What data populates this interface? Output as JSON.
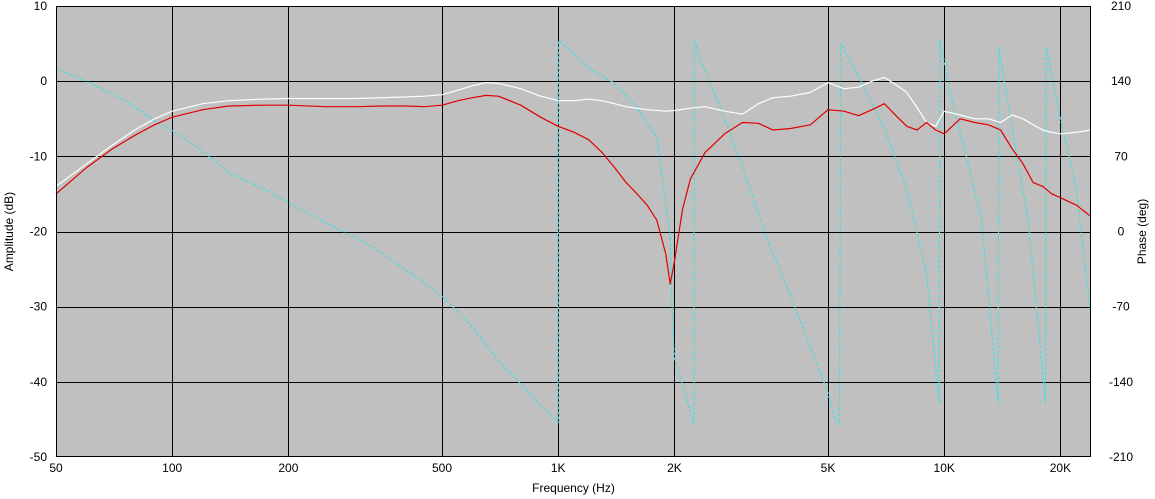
{
  "chart_data": {
    "type": "line",
    "title": "",
    "xlabel": "Frequency (Hz)",
    "ylabel": "Amplitude (dB)",
    "y2label": "Phase (deg)",
    "x_scale": "log",
    "xlim": [
      50,
      24000
    ],
    "ylim": [
      -50,
      10
    ],
    "y2lim": [
      -210,
      210
    ],
    "x_ticks": [
      50,
      100,
      200,
      500,
      1000,
      2000,
      5000,
      10000,
      20000
    ],
    "x_tick_labels": [
      "50",
      "100",
      "200",
      "500",
      "1K",
      "2K",
      "5K",
      "10K",
      "20K"
    ],
    "y_ticks": [
      10,
      0,
      -10,
      -20,
      -30,
      -40,
      -50
    ],
    "y_tick_labels": [
      "10",
      "0",
      "-10",
      "-20",
      "-30",
      "-40",
      "-50"
    ],
    "y2_ticks": [
      210,
      140,
      70,
      0,
      -70,
      -140,
      -210
    ],
    "y2_tick_labels": [
      "210",
      "140",
      "70",
      "0",
      "-70",
      "-140",
      "-210"
    ],
    "grid": true,
    "colors": {
      "plot_bg": "#c0c0c0",
      "page_bg": "#ffffff"
    },
    "series": [
      {
        "axis": "left",
        "color": "#ffffff",
        "style": "solid",
        "x": [
          50,
          60,
          70,
          80,
          90,
          100,
          120,
          140,
          170,
          200,
          250,
          300,
          350,
          400,
          450,
          500,
          550,
          600,
          650,
          700,
          800,
          900,
          1000,
          1100,
          1200,
          1300,
          1400,
          1500,
          1700,
          1900,
          2000,
          2200,
          2400,
          2700,
          3000,
          3300,
          3600,
          4000,
          4500,
          5000,
          5500,
          6000,
          6500,
          7000,
          7500,
          8000,
          8500,
          9000,
          9500,
          10000,
          11000,
          12000,
          13000,
          14000,
          15000,
          16000,
          17000,
          18000,
          19000,
          20000,
          22000,
          24000
        ],
        "y": [
          -14,
          -11,
          -8.5,
          -6.5,
          -5,
          -4,
          -3,
          -2.6,
          -2.4,
          -2.3,
          -2.3,
          -2.3,
          -2.2,
          -2.1,
          -2.0,
          -1.8,
          -1.2,
          -0.6,
          -0.2,
          -0.3,
          -1.0,
          -2.0,
          -2.6,
          -2.6,
          -2.4,
          -2.6,
          -3.0,
          -3.4,
          -3.8,
          -4.0,
          -3.9,
          -3.6,
          -3.4,
          -4.0,
          -4.4,
          -3.0,
          -2.2,
          -2.0,
          -1.5,
          -0.2,
          -1.0,
          -0.8,
          0.0,
          0.5,
          -0.5,
          -1.5,
          -3.5,
          -5.5,
          -6.0,
          -4.0,
          -4.5,
          -5.0,
          -5.0,
          -5.5,
          -4.5,
          -5.0,
          -5.8,
          -6.5,
          -6.8,
          -7.0,
          -6.8,
          -6.5
        ]
      },
      {
        "axis": "left",
        "color": "#e00000",
        "style": "solid",
        "x": [
          50,
          60,
          70,
          80,
          90,
          100,
          120,
          140,
          170,
          200,
          250,
          300,
          350,
          400,
          450,
          500,
          550,
          600,
          650,
          700,
          800,
          900,
          1000,
          1100,
          1200,
          1300,
          1400,
          1500,
          1600,
          1700,
          1800,
          1900,
          1950,
          2000,
          2100,
          2200,
          2400,
          2700,
          3000,
          3300,
          3600,
          4000,
          4500,
          5000,
          5500,
          6000,
          6500,
          7000,
          7500,
          8000,
          8500,
          9000,
          9500,
          10000,
          11000,
          12000,
          13000,
          14000,
          15000,
          16000,
          17000,
          18000,
          19000,
          20000,
          22000,
          24000
        ],
        "y": [
          -15,
          -11.5,
          -9,
          -7.2,
          -5.8,
          -4.8,
          -3.8,
          -3.3,
          -3.2,
          -3.2,
          -3.4,
          -3.4,
          -3.3,
          -3.3,
          -3.4,
          -3.2,
          -2.6,
          -2.2,
          -1.9,
          -2.0,
          -3.2,
          -4.8,
          -6.0,
          -6.8,
          -7.8,
          -9.5,
          -11.5,
          -13.5,
          -15.0,
          -16.5,
          -18.5,
          -23.0,
          -27.0,
          -24.0,
          -17.0,
          -13.0,
          -9.5,
          -7.0,
          -5.5,
          -5.6,
          -6.5,
          -6.3,
          -5.8,
          -3.8,
          -4.0,
          -4.6,
          -3.8,
          -3.0,
          -4.6,
          -6.0,
          -6.5,
          -5.5,
          -6.5,
          -7.0,
          -5.0,
          -5.5,
          -5.8,
          -6.5,
          -9.0,
          -11.0,
          -13.5,
          -14.0,
          -15.0,
          -15.5,
          -16.5,
          -18.0
        ]
      },
      {
        "axis": "right",
        "color": "#40e0e0",
        "style": "dashed",
        "x": [
          50,
          60,
          70,
          80,
          90,
          100,
          120,
          140,
          170,
          200,
          250,
          300,
          350,
          400,
          450,
          500,
          600,
          700,
          800,
          900,
          1000,
          1000.5,
          1100,
          1200,
          1400,
          1600,
          1800,
          1950,
          1980,
          2000,
          2150,
          2250,
          2250.5,
          2400,
          2700,
          3000,
          3500,
          4000,
          4500,
          5000,
          5200,
          5350,
          5400,
          6000,
          7000,
          8000,
          9000,
          9700,
          9750,
          10500,
          11500,
          12500,
          13800,
          13850,
          15000,
          16500,
          18300,
          18350,
          20000,
          22000,
          24000
        ],
        "y": [
          152,
          140,
          128,
          116,
          103,
          94,
          75,
          55,
          41,
          27,
          8,
          -6,
          -20,
          -35,
          -48,
          -60,
          -89,
          -120,
          -142,
          -162,
          -178,
          178,
          165,
          152,
          138,
          115,
          88,
          -4,
          -90,
          -118,
          -155,
          -180,
          178,
          150,
          105,
          60,
          -10,
          -60,
          -108,
          -150,
          -175,
          -180,
          175,
          145,
          95,
          40,
          -40,
          -160,
          178,
          120,
          65,
          10,
          -160,
          172,
          95,
          10,
          -160,
          172,
          105,
          40,
          -80
        ]
      }
    ]
  }
}
